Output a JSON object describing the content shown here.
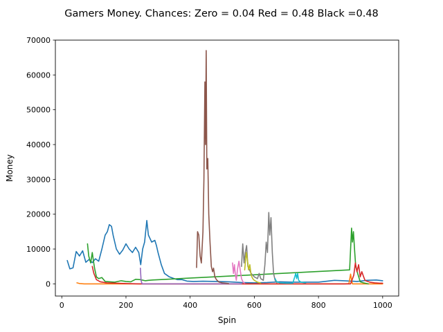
{
  "chart_data": {
    "type": "line",
    "title": "Gamers Money. Chances: Zero = 0.04  Red = 0.48  Black =0.48",
    "xlabel": "Spin",
    "ylabel": "Money",
    "xlim": [
      -20,
      1050
    ],
    "ylim": [
      -3500,
      70000
    ],
    "xticks": [
      0,
      200,
      400,
      600,
      800,
      1000
    ],
    "yticks": [
      0,
      10000,
      20000,
      30000,
      40000,
      50000,
      60000,
      70000
    ],
    "grid": false,
    "series": [
      {
        "color": "#1f77b4",
        "points": [
          [
            17,
            6700
          ],
          [
            25,
            4300
          ],
          [
            35,
            4600
          ],
          [
            45,
            9300
          ],
          [
            55,
            8000
          ],
          [
            65,
            9500
          ],
          [
            75,
            6200
          ],
          [
            85,
            7000
          ],
          [
            95,
            6100
          ],
          [
            105,
            7200
          ],
          [
            115,
            6500
          ],
          [
            125,
            10000
          ],
          [
            135,
            14000
          ],
          [
            142,
            15000
          ],
          [
            148,
            17000
          ],
          [
            155,
            16500
          ],
          [
            160,
            14000
          ],
          [
            170,
            10000
          ],
          [
            180,
            8500
          ],
          [
            190,
            9700
          ],
          [
            200,
            11500
          ],
          [
            210,
            10000
          ],
          [
            220,
            9000
          ],
          [
            230,
            10500
          ],
          [
            240,
            9000
          ],
          [
            246,
            5500
          ],
          [
            252,
            10000
          ],
          [
            258,
            12000
          ],
          [
            265,
            18200
          ],
          [
            270,
            14000
          ],
          [
            280,
            12000
          ],
          [
            290,
            12500
          ],
          [
            295,
            11000
          ],
          [
            300,
            9000
          ],
          [
            310,
            5500
          ],
          [
            320,
            3000
          ],
          [
            335,
            2000
          ],
          [
            350,
            1500
          ],
          [
            360,
            1200
          ],
          [
            375,
            1200
          ],
          [
            390,
            800
          ],
          [
            410,
            700
          ],
          [
            440,
            750
          ],
          [
            480,
            700
          ],
          [
            520,
            600
          ],
          [
            560,
            400
          ],
          [
            600,
            300
          ],
          [
            640,
            400
          ],
          [
            680,
            600
          ],
          [
            720,
            500
          ],
          [
            760,
            500
          ],
          [
            800,
            500
          ],
          [
            850,
            1000
          ],
          [
            880,
            900
          ],
          [
            920,
            700
          ],
          [
            950,
            1000
          ],
          [
            980,
            1100
          ],
          [
            1000,
            900
          ]
        ]
      },
      {
        "color": "#ff7f0e",
        "points": [
          [
            47,
            300
          ],
          [
            55,
            100
          ],
          [
            70,
            0
          ],
          [
            120,
            0
          ],
          [
            200,
            0
          ],
          [
            300,
            0
          ],
          [
            400,
            0
          ],
          [
            500,
            0
          ],
          [
            600,
            0
          ],
          [
            700,
            0
          ],
          [
            800,
            0
          ],
          [
            880,
            0
          ],
          [
            895,
            50
          ],
          [
            900,
            2800
          ],
          [
            903,
            1000
          ],
          [
            906,
            0
          ],
          [
            930,
            0
          ],
          [
            960,
            0
          ],
          [
            1000,
            0
          ]
        ]
      },
      {
        "color": "#2ca02c",
        "points": [
          [
            80,
            11500
          ],
          [
            84,
            8000
          ],
          [
            90,
            6000
          ],
          [
            95,
            9000
          ],
          [
            98,
            7000
          ],
          [
            102,
            4500
          ],
          [
            108,
            2000
          ],
          [
            115,
            1500
          ],
          [
            125,
            1800
          ],
          [
            135,
            700
          ],
          [
            150,
            600
          ],
          [
            165,
            500
          ],
          [
            185,
            900
          ],
          [
            200,
            700
          ],
          [
            215,
            600
          ],
          [
            230,
            1300
          ],
          [
            245,
            1200
          ],
          [
            260,
            900
          ],
          [
            270,
            1000
          ],
          [
            283,
            1100
          ],
          [
            897,
            4000
          ],
          [
            903,
            16000
          ],
          [
            906,
            12000
          ],
          [
            909,
            15000
          ],
          [
            913,
            9000
          ],
          [
            916,
            5000
          ],
          [
            922,
            3000
          ],
          [
            930,
            600
          ],
          [
            940,
            300
          ],
          [
            955,
            0
          ]
        ]
      },
      {
        "color": "#d62728",
        "points": [
          [
            95,
            5000
          ],
          [
            100,
            3000
          ],
          [
            108,
            1200
          ],
          [
            120,
            600
          ],
          [
            140,
            300
          ],
          [
            170,
            200
          ],
          [
            200,
            100
          ],
          [
            240,
            0
          ],
          [
            400,
            0
          ],
          [
            600,
            0
          ],
          [
            800,
            0
          ],
          [
            900,
            0
          ],
          [
            910,
            2500
          ],
          [
            915,
            6000
          ],
          [
            920,
            3500
          ],
          [
            925,
            5500
          ],
          [
            930,
            2000
          ],
          [
            935,
            3500
          ],
          [
            940,
            2200
          ],
          [
            945,
            1000
          ],
          [
            950,
            800
          ],
          [
            960,
            500
          ],
          [
            975,
            300
          ],
          [
            990,
            200
          ],
          [
            1000,
            200
          ]
        ]
      },
      {
        "color": "#9467bd",
        "points": [
          [
            245,
            4500
          ],
          [
            247,
            1000
          ],
          [
            250,
            0
          ],
          [
            300,
            0
          ],
          [
            400,
            0
          ],
          [
            500,
            0
          ],
          [
            560,
            0
          ]
        ]
      },
      {
        "color": "#8c564b",
        "points": [
          [
            420,
            4700
          ],
          [
            423,
            15000
          ],
          [
            427,
            14000
          ],
          [
            431,
            8000
          ],
          [
            435,
            6000
          ],
          [
            440,
            15000
          ],
          [
            443,
            30000
          ],
          [
            446,
            58000
          ],
          [
            448,
            40000
          ],
          [
            450,
            67000
          ],
          [
            452,
            33000
          ],
          [
            455,
            36000
          ],
          [
            458,
            20000
          ],
          [
            462,
            12000
          ],
          [
            466,
            5000
          ],
          [
            470,
            3500
          ],
          [
            473,
            4500
          ],
          [
            477,
            2000
          ],
          [
            482,
            1200
          ],
          [
            490,
            500
          ],
          [
            500,
            300
          ],
          [
            520,
            100
          ]
        ]
      },
      {
        "color": "#e377c2",
        "points": [
          [
            532,
            6000
          ],
          [
            535,
            3000
          ],
          [
            538,
            5500
          ],
          [
            541,
            2500
          ],
          [
            544,
            1000
          ],
          [
            548,
            4500
          ],
          [
            552,
            6500
          ],
          [
            556,
            4000
          ],
          [
            560,
            1500
          ],
          [
            565,
            500
          ],
          [
            570,
            200
          ]
        ]
      },
      {
        "color": "#7f7f7f",
        "points": [
          [
            560,
            5000
          ],
          [
            564,
            11500
          ],
          [
            568,
            6000
          ],
          [
            572,
            9000
          ],
          [
            576,
            11000
          ],
          [
            580,
            5000
          ],
          [
            590,
            3000
          ],
          [
            600,
            2000
          ],
          [
            610,
            1500
          ],
          [
            615,
            3000
          ],
          [
            620,
            1500
          ],
          [
            628,
            1000
          ],
          [
            633,
            5500
          ],
          [
            637,
            12000
          ],
          [
            641,
            9000
          ],
          [
            645,
            20500
          ],
          [
            648,
            14000
          ],
          [
            652,
            19000
          ],
          [
            656,
            9000
          ],
          [
            660,
            3000
          ],
          [
            665,
            1000
          ],
          [
            670,
            300
          ]
        ]
      },
      {
        "color": "#bcbd22",
        "points": [
          [
            570,
            4000
          ],
          [
            575,
            9000
          ],
          [
            579,
            6500
          ],
          [
            582,
            4000
          ],
          [
            586,
            5500
          ],
          [
            590,
            2500
          ],
          [
            595,
            1500
          ],
          [
            600,
            1000
          ],
          [
            610,
            500
          ],
          [
            620,
            200
          ]
        ]
      },
      {
        "color": "#17becf",
        "points": [
          [
            665,
            1500
          ],
          [
            668,
            900
          ],
          [
            672,
            500
          ],
          [
            680,
            300
          ],
          [
            700,
            200
          ],
          [
            720,
            200
          ],
          [
            726,
            2000
          ],
          [
            729,
            3000
          ],
          [
            732,
            1500
          ],
          [
            735,
            3000
          ],
          [
            738,
            1000
          ],
          [
            745,
            500
          ],
          [
            760,
            300
          ]
        ]
      }
    ]
  }
}
